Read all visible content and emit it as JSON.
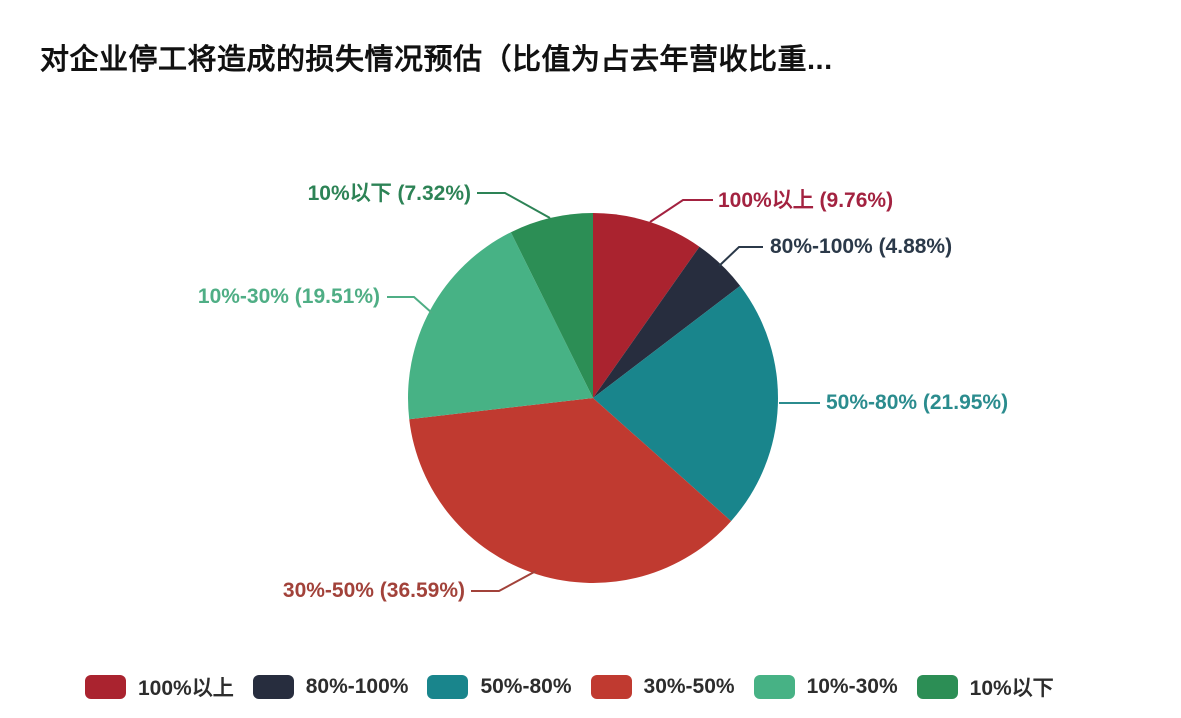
{
  "chart_data": {
    "type": "pie",
    "title": "对企业停工将造成的损失情况预估（比值为占去年营收比重...",
    "start_angle_deg": 0,
    "direction": "clockwise",
    "unit": "%",
    "legend_position": "bottom",
    "slices": [
      {
        "label": "100%以上",
        "value": 9.76,
        "color": "#aa232f",
        "callout": "100%以上 (9.76%)",
        "callout_color": "#a32240"
      },
      {
        "label": "80%-100%",
        "value": 4.88,
        "color": "#272d3e",
        "callout": "80%-100% (4.88%)",
        "callout_color": "#2b3949"
      },
      {
        "label": "50%-80%",
        "value": 21.95,
        "color": "#19858c",
        "callout": "50%-80% (21.95%)",
        "callout_color": "#2b8c8e"
      },
      {
        "label": "30%-50%",
        "value": 36.59,
        "color": "#c03a30",
        "callout": "30%-50% (36.59%)",
        "callout_color": "#a2423a"
      },
      {
        "label": "10%-30%",
        "value": 19.51,
        "color": "#47b285",
        "callout": "10%-30% (19.51%)",
        "callout_color": "#4fae85"
      },
      {
        "label": "10%以下",
        "value": 7.32,
        "color": "#2c8e55",
        "callout": "10%以下 (7.32%)",
        "callout_color": "#2d8356"
      }
    ]
  }
}
